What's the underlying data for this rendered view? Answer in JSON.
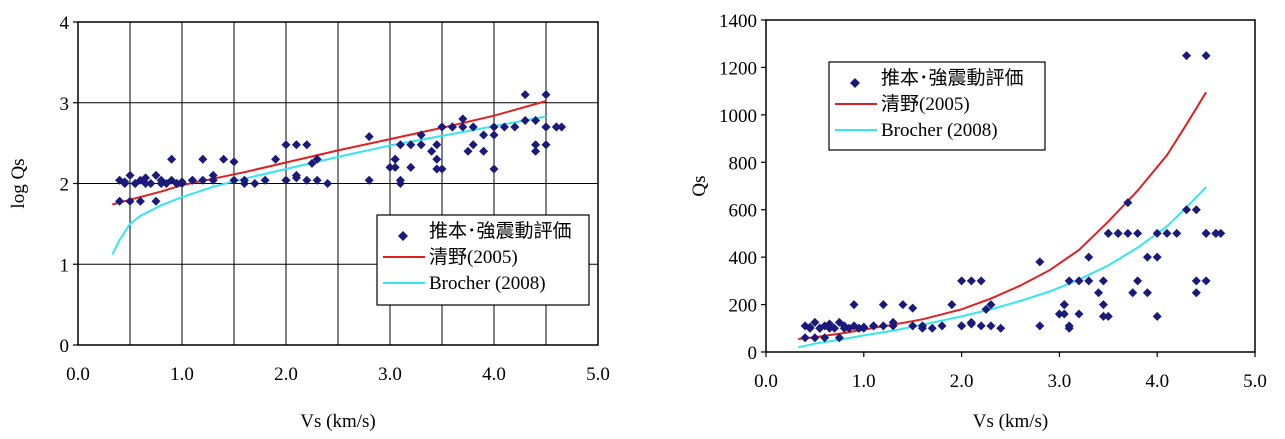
{
  "chart_data": [
    {
      "type": "scatter",
      "xlabel": "Vs (km/s)",
      "ylabel": "log Qs",
      "xlim": [
        0,
        5
      ],
      "ylim": [
        0,
        4
      ],
      "xticks": [
        "0.0",
        "1.0",
        "2.0",
        "3.0",
        "4.0",
        "5.0"
      ],
      "yticks": [
        "0",
        "1",
        "2",
        "3",
        "4"
      ],
      "grid": true,
      "legend_position": "bottom-right",
      "series": [
        {
          "name": "推本･強震動評価",
          "kind": "points",
          "color": "#1a1a7a",
          "x": [
            0.4,
            0.45,
            0.5,
            0.55,
            0.6,
            0.65,
            0.7,
            0.75,
            0.8,
            0.85,
            0.9,
            0.95,
            1.0,
            1.1,
            1.2,
            1.3,
            1.4,
            1.6,
            1.8,
            2.0,
            2.1,
            2.2,
            2.3,
            0.4,
            0.5,
            0.6,
            0.75,
            0.9,
            1.1,
            1.3,
            1.6,
            2.0,
            2.2,
            0.45,
            0.55,
            0.65,
            0.8,
            0.95,
            1.2,
            1.5,
            1.7,
            1.9,
            2.1,
            2.3,
            2.4,
            1.0,
            1.5,
            2.0,
            2.1,
            2.25,
            2.8,
            3.0,
            3.05,
            3.1,
            3.2,
            3.3,
            3.4,
            3.5,
            3.6,
            3.7,
            3.8,
            3.9,
            4.0,
            4.1,
            4.2,
            4.3,
            4.4,
            4.5,
            4.6,
            3.05,
            3.1,
            3.2,
            3.3,
            3.45,
            3.5,
            3.7,
            3.8,
            3.9,
            4.0,
            4.4,
            4.5,
            4.6,
            2.8,
            3.1,
            3.45,
            3.5,
            3.75,
            4.0,
            4.3,
            4.5,
            4.4,
            4.5,
            3.05,
            3.6,
            4.65,
            3.45
          ],
          "y": [
            2.04,
            2.02,
            2.1,
            2.0,
            2.04,
            2.07,
            2.0,
            2.1,
            2.04,
            2.0,
            2.3,
            2.0,
            2.02,
            2.04,
            2.3,
            2.1,
            2.3,
            2.04,
            2.04,
            2.48,
            2.1,
            2.48,
            2.3,
            1.78,
            1.78,
            1.78,
            1.78,
            2.04,
            2.04,
            2.04,
            2.0,
            2.04,
            2.04,
            2.0,
            2.0,
            2.0,
            2.0,
            2.0,
            2.04,
            2.27,
            2.0,
            2.3,
            2.07,
            2.04,
            2.0,
            2.0,
            2.04,
            2.04,
            2.48,
            2.25,
            2.58,
            2.2,
            2.3,
            2.0,
            2.48,
            2.6,
            2.4,
            2.7,
            2.7,
            2.8,
            2.7,
            2.6,
            2.7,
            2.7,
            2.7,
            2.78,
            2.78,
            2.7,
            2.7,
            2.3,
            2.04,
            2.2,
            2.48,
            2.18,
            2.18,
            2.7,
            2.48,
            2.4,
            2.6,
            2.48,
            2.7,
            2.7,
            2.04,
            2.48,
            2.3,
            2.7,
            2.4,
            2.18,
            3.1,
            3.1,
            2.4,
            2.48,
            2.2,
            2.7,
            2.7,
            2.48
          ]
        },
        {
          "name": "清野(2005)",
          "kind": "line",
          "color": "#e02020",
          "x": [
            0.33,
            0.5,
            0.8,
            1.0,
            1.3,
            1.6,
            2.0,
            2.5,
            3.0,
            3.5,
            4.0,
            4.5
          ],
          "y": [
            1.74,
            1.8,
            1.9,
            1.98,
            2.06,
            2.14,
            2.26,
            2.41,
            2.55,
            2.69,
            2.84,
            3.02
          ]
        },
        {
          "name": "Brocher (2008)",
          "kind": "line",
          "color": "#33e6f0",
          "x": [
            0.33,
            0.4,
            0.5,
            0.6,
            0.8,
            1.0,
            1.3,
            1.6,
            2.0,
            2.5,
            3.0,
            3.5,
            4.0,
            4.5
          ],
          "y": [
            1.12,
            1.3,
            1.5,
            1.6,
            1.73,
            1.83,
            1.96,
            2.06,
            2.18,
            2.33,
            2.47,
            2.59,
            2.71,
            2.83
          ]
        }
      ]
    },
    {
      "type": "scatter",
      "xlabel": "Vs (km/s)",
      "ylabel": "Qs",
      "xlim": [
        0,
        5
      ],
      "ylim": [
        0,
        1400
      ],
      "xticks": [
        "0.0",
        "1.0",
        "2.0",
        "3.0",
        "4.0",
        "5.0"
      ],
      "yticks": [
        "0",
        "200",
        "400",
        "600",
        "800",
        "1000",
        "1200",
        "1400"
      ],
      "grid": false,
      "legend_position": "top-left",
      "series": [
        {
          "name": "推本･強震動評価",
          "kind": "points",
          "color": "#1a1a7a",
          "x": [
            0.4,
            0.45,
            0.5,
            0.55,
            0.6,
            0.65,
            0.7,
            0.75,
            0.8,
            0.85,
            0.9,
            0.95,
            1.0,
            1.1,
            1.2,
            1.3,
            1.4,
            1.6,
            1.8,
            2.0,
            2.1,
            2.2,
            2.3,
            0.4,
            0.5,
            0.6,
            0.75,
            0.9,
            1.1,
            1.3,
            1.6,
            2.0,
            2.2,
            0.45,
            0.55,
            0.65,
            0.8,
            0.95,
            1.2,
            1.5,
            1.7,
            1.9,
            2.1,
            2.3,
            2.4,
            1.0,
            1.5,
            2.0,
            2.1,
            2.25,
            2.8,
            3.0,
            3.05,
            3.1,
            3.2,
            3.3,
            3.4,
            3.5,
            3.6,
            3.7,
            3.8,
            3.9,
            4.0,
            4.1,
            4.2,
            4.3,
            4.4,
            4.5,
            4.6,
            3.05,
            3.1,
            3.2,
            3.3,
            3.45,
            3.5,
            3.7,
            3.8,
            3.9,
            4.0,
            4.4,
            4.5,
            4.6,
            2.8,
            3.1,
            3.45,
            3.5,
            3.75,
            4.0,
            4.3,
            4.5,
            4.4,
            4.5,
            3.05,
            3.6,
            4.65,
            3.45
          ],
          "y": [
            110,
            105,
            125,
            100,
            110,
            118,
            100,
            125,
            110,
            100,
            200,
            100,
            105,
            110,
            200,
            125,
            200,
            110,
            110,
            300,
            125,
            300,
            200,
            60,
            60,
            60,
            60,
            110,
            110,
            110,
            100,
            110,
            110,
            100,
            100,
            100,
            100,
            100,
            110,
            185,
            100,
            200,
            118,
            110,
            100,
            100,
            110,
            110,
            300,
            180,
            380,
            160,
            200,
            100,
            300,
            400,
            250,
            500,
            500,
            630,
            500,
            400,
            500,
            500,
            500,
            600,
            600,
            500,
            500,
            200,
            110,
            160,
            300,
            150,
            150,
            500,
            300,
            250,
            400,
            300,
            500,
            500,
            110,
            300,
            200,
            500,
            250,
            150,
            1250,
            1250,
            250,
            300,
            160,
            500,
            500,
            300
          ]
        },
        {
          "name": "清野(2005)",
          "kind": "line",
          "color": "#e02020",
          "x": [
            0.33,
            0.5,
            0.8,
            1.0,
            1.3,
            1.6,
            2.0,
            2.3,
            2.6,
            2.9,
            3.2,
            3.5,
            3.8,
            4.1,
            4.3,
            4.5
          ],
          "y": [
            55,
            62,
            80,
            95,
            115,
            138,
            180,
            225,
            280,
            345,
            430,
            550,
            680,
            830,
            960,
            1095
          ]
        },
        {
          "name": "Brocher (2008)",
          "kind": "line",
          "color": "#33e6f0",
          "x": [
            0.33,
            0.5,
            0.8,
            1.0,
            1.3,
            1.6,
            2.0,
            2.3,
            2.6,
            2.9,
            3.2,
            3.5,
            3.8,
            4.1,
            4.3,
            4.5
          ],
          "y": [
            20,
            35,
            55,
            70,
            90,
            115,
            150,
            180,
            215,
            255,
            305,
            365,
            440,
            530,
            610,
            695
          ]
        }
      ]
    }
  ]
}
